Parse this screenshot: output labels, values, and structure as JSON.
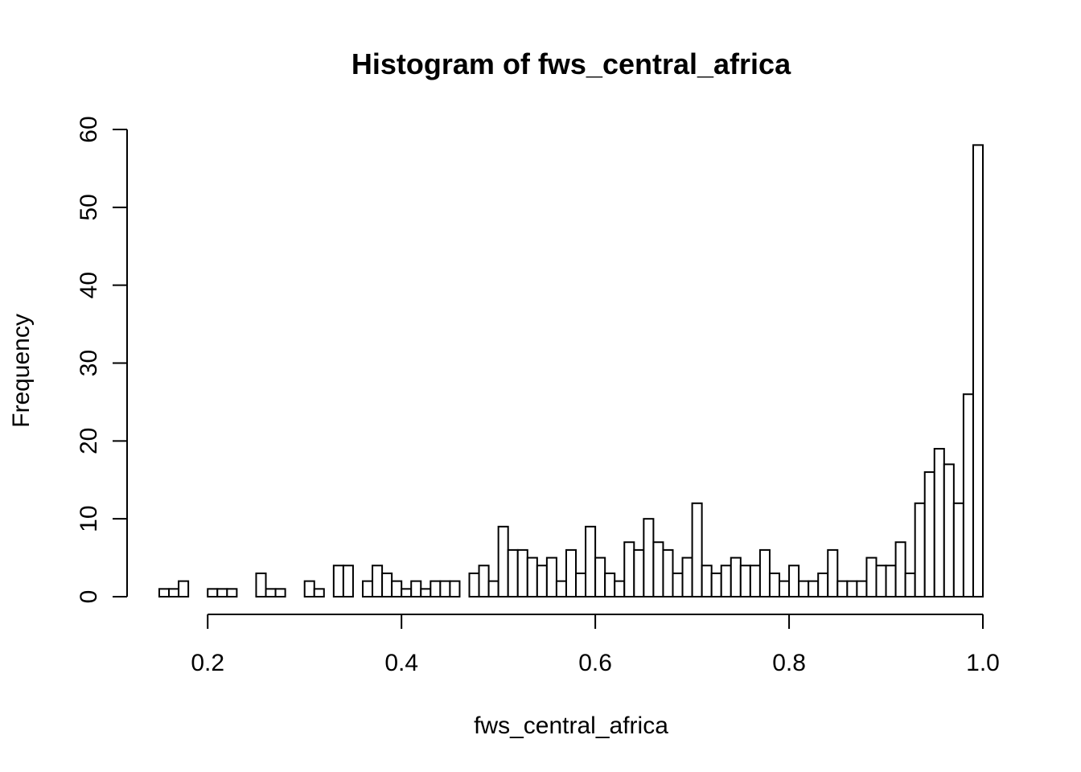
{
  "chart_data": {
    "type": "bar",
    "title": "Histogram of fws_central_africa",
    "xlabel": "fws_central_africa",
    "ylabel": "Frequency",
    "bin_width": 0.01,
    "x_start": 0.15,
    "values": [
      1,
      1,
      2,
      0,
      0,
      1,
      1,
      1,
      0,
      0,
      3,
      1,
      1,
      0,
      0,
      2,
      1,
      0,
      4,
      4,
      0,
      2,
      4,
      3,
      2,
      1,
      2,
      1,
      2,
      2,
      2,
      0,
      3,
      4,
      2,
      9,
      6,
      6,
      5,
      4,
      5,
      2,
      6,
      3,
      9,
      5,
      3,
      2,
      7,
      6,
      10,
      7,
      6,
      3,
      5,
      12,
      4,
      3,
      4,
      5,
      4,
      4,
      6,
      3,
      2,
      4,
      2,
      2,
      3,
      6,
      2,
      2,
      2,
      5,
      4,
      4,
      7,
      3,
      12,
      16,
      19,
      17,
      12,
      26,
      58
    ],
    "xlim": [
      0.15,
      1.0
    ],
    "ylim": [
      0,
      60
    ],
    "x_ticks": [
      0.2,
      0.4,
      0.6,
      0.8,
      1.0
    ],
    "x_tick_labels": [
      "0.2",
      "0.4",
      "0.6",
      "0.8",
      "1.0"
    ],
    "y_ticks": [
      0,
      10,
      20,
      30,
      40,
      50,
      60
    ],
    "y_tick_labels": [
      "0",
      "10",
      "20",
      "30",
      "40",
      "50",
      "60"
    ],
    "grid": false,
    "colors": {
      "bar_fill": "#ffffff",
      "bar_stroke": "#000000"
    }
  }
}
